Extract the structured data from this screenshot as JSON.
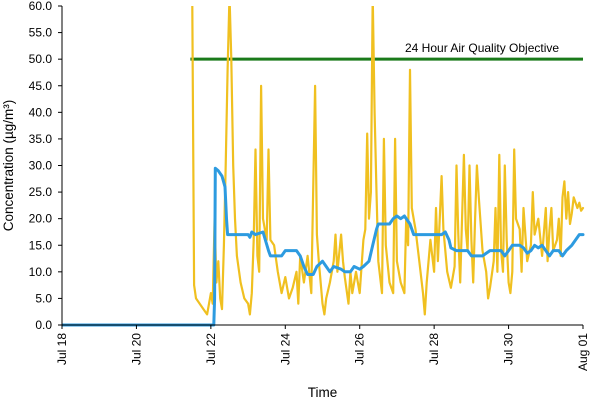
{
  "chart_data": {
    "type": "line",
    "xlabel": "Time",
    "ylabel": "Concentration (µg/m³)",
    "ylim": [
      0,
      60
    ],
    "xlim": [
      "Jul 18",
      "Aug 01"
    ],
    "y_ticks": [
      "0.0",
      "5.0",
      "10.0",
      "15.0",
      "20.0",
      "25.0",
      "30.0",
      "35.0",
      "40.0",
      "45.0",
      "50.0",
      "55.0",
      "60.0"
    ],
    "x_ticks": [
      "Jul 18",
      "Jul 20",
      "Jul 22",
      "Jul 24",
      "Jul 26",
      "Jul 28",
      "Jul 30",
      "Aug 01"
    ],
    "grid": false,
    "colors": {
      "hourly": "#f0c020",
      "rolling": "#2d9be0",
      "objective": "#1a7a1a"
    },
    "objective": {
      "value": 50,
      "x_start_day": 21.45,
      "x_end_day": 32.0,
      "label": "24 Hour Air Quality Objective"
    },
    "series": [
      {
        "key": "hourly",
        "points": [
          [
            21.5,
            60
          ],
          [
            21.55,
            7.5
          ],
          [
            21.6,
            5
          ],
          [
            21.7,
            4
          ],
          [
            21.8,
            3
          ],
          [
            21.9,
            2
          ],
          [
            22.0,
            6
          ],
          [
            22.05,
            4
          ],
          [
            22.1,
            20
          ],
          [
            22.15,
            8
          ],
          [
            22.2,
            12
          ],
          [
            22.25,
            5
          ],
          [
            22.3,
            3
          ],
          [
            22.35,
            15
          ],
          [
            22.4,
            30
          ],
          [
            22.45,
            48
          ],
          [
            22.5,
            62
          ],
          [
            22.55,
            50
          ],
          [
            22.6,
            30
          ],
          [
            22.65,
            20
          ],
          [
            22.7,
            13
          ],
          [
            22.8,
            8
          ],
          [
            22.9,
            5
          ],
          [
            23.0,
            4
          ],
          [
            23.05,
            2
          ],
          [
            23.1,
            6
          ],
          [
            23.15,
            16
          ],
          [
            23.2,
            33
          ],
          [
            23.25,
            13
          ],
          [
            23.3,
            10
          ],
          [
            23.35,
            45
          ],
          [
            23.4,
            20
          ],
          [
            23.5,
            16
          ],
          [
            23.55,
            33
          ],
          [
            23.6,
            16
          ],
          [
            23.7,
            15
          ],
          [
            23.8,
            10
          ],
          [
            23.9,
            6
          ],
          [
            24.0,
            9
          ],
          [
            24.1,
            5
          ],
          [
            24.2,
            7
          ],
          [
            24.3,
            10
          ],
          [
            24.35,
            4
          ],
          [
            24.4,
            13
          ],
          [
            24.5,
            8
          ],
          [
            24.6,
            13
          ],
          [
            24.7,
            6
          ],
          [
            24.8,
            45
          ],
          [
            24.85,
            17
          ],
          [
            24.9,
            12
          ],
          [
            25.0,
            4
          ],
          [
            25.05,
            2
          ],
          [
            25.1,
            5
          ],
          [
            25.2,
            8
          ],
          [
            25.3,
            12
          ],
          [
            25.35,
            17
          ],
          [
            25.4,
            10
          ],
          [
            25.5,
            17
          ],
          [
            25.55,
            12
          ],
          [
            25.6,
            9
          ],
          [
            25.7,
            4
          ],
          [
            25.75,
            10
          ],
          [
            25.8,
            6
          ],
          [
            25.9,
            10
          ],
          [
            26.0,
            6
          ],
          [
            26.1,
            16
          ],
          [
            26.15,
            18
          ],
          [
            26.2,
            36
          ],
          [
            26.25,
            20
          ],
          [
            26.3,
            25
          ],
          [
            26.35,
            62
          ],
          [
            26.4,
            40
          ],
          [
            26.45,
            25
          ],
          [
            26.5,
            12
          ],
          [
            26.6,
            6
          ],
          [
            26.65,
            35
          ],
          [
            26.7,
            15
          ],
          [
            26.8,
            8
          ],
          [
            26.9,
            6
          ],
          [
            26.95,
            35
          ],
          [
            27.0,
            12
          ],
          [
            27.1,
            8
          ],
          [
            27.2,
            6
          ],
          [
            27.25,
            20
          ],
          [
            27.3,
            15
          ],
          [
            27.35,
            48
          ],
          [
            27.4,
            22
          ],
          [
            27.5,
            18
          ],
          [
            27.6,
            12
          ],
          [
            27.7,
            6
          ],
          [
            27.75,
            2
          ],
          [
            27.8,
            8
          ],
          [
            27.9,
            16
          ],
          [
            28.0,
            10
          ],
          [
            28.05,
            22
          ],
          [
            28.1,
            12
          ],
          [
            28.2,
            28
          ],
          [
            28.25,
            18
          ],
          [
            28.35,
            10
          ],
          [
            28.45,
            7
          ],
          [
            28.55,
            11
          ],
          [
            28.6,
            30
          ],
          [
            28.65,
            17
          ],
          [
            28.7,
            8
          ],
          [
            28.8,
            32
          ],
          [
            28.85,
            18
          ],
          [
            28.9,
            14
          ],
          [
            28.95,
            30
          ],
          [
            29.0,
            16
          ],
          [
            29.05,
            8
          ],
          [
            29.1,
            20
          ],
          [
            29.15,
            30
          ],
          [
            29.2,
            24
          ],
          [
            29.3,
            14
          ],
          [
            29.4,
            10
          ],
          [
            29.45,
            5
          ],
          [
            29.5,
            7
          ],
          [
            29.6,
            12
          ],
          [
            29.65,
            22
          ],
          [
            29.7,
            10
          ],
          [
            29.75,
            32
          ],
          [
            29.8,
            14
          ],
          [
            29.85,
            10
          ],
          [
            29.9,
            30
          ],
          [
            29.95,
            16
          ],
          [
            30.0,
            8
          ],
          [
            30.05,
            6
          ],
          [
            30.1,
            10
          ],
          [
            30.15,
            33
          ],
          [
            30.2,
            20
          ],
          [
            30.3,
            18
          ],
          [
            30.35,
            10
          ],
          [
            30.4,
            22
          ],
          [
            30.5,
            12
          ],
          [
            30.6,
            15
          ],
          [
            30.65,
            25
          ],
          [
            30.7,
            17
          ],
          [
            30.8,
            20
          ],
          [
            30.9,
            13
          ],
          [
            31.0,
            22
          ],
          [
            31.05,
            12
          ],
          [
            31.1,
            18
          ],
          [
            31.15,
            22
          ],
          [
            31.2,
            14
          ],
          [
            31.3,
            16
          ],
          [
            31.35,
            20
          ],
          [
            31.4,
            13
          ],
          [
            31.45,
            24
          ],
          [
            31.5,
            27
          ],
          [
            31.55,
            20
          ],
          [
            31.6,
            25
          ],
          [
            31.65,
            19
          ],
          [
            31.7,
            21
          ],
          [
            31.75,
            24
          ],
          [
            31.8,
            23
          ],
          [
            31.85,
            22
          ],
          [
            31.9,
            23
          ],
          [
            31.95,
            21.5
          ],
          [
            32.0,
            22
          ]
        ]
      },
      {
        "key": "rolling",
        "points": [
          [
            18.0,
            0
          ],
          [
            22.08,
            0
          ],
          [
            22.1,
            5
          ],
          [
            22.12,
            29.5
          ],
          [
            22.2,
            29
          ],
          [
            22.3,
            28
          ],
          [
            22.38,
            26
          ],
          [
            22.42,
            20
          ],
          [
            22.45,
            17
          ],
          [
            22.55,
            17
          ],
          [
            22.6,
            17
          ],
          [
            23.0,
            17
          ],
          [
            23.05,
            16.5
          ],
          [
            23.1,
            17.5
          ],
          [
            23.2,
            17
          ],
          [
            23.4,
            17.5
          ],
          [
            23.55,
            14
          ],
          [
            23.6,
            13
          ],
          [
            23.9,
            13
          ],
          [
            24.0,
            14
          ],
          [
            24.3,
            14
          ],
          [
            24.4,
            13
          ],
          [
            24.5,
            11
          ],
          [
            24.6,
            9.5
          ],
          [
            24.75,
            9.5
          ],
          [
            24.85,
            11
          ],
          [
            25.0,
            12
          ],
          [
            25.1,
            11
          ],
          [
            25.2,
            10
          ],
          [
            25.3,
            11
          ],
          [
            25.5,
            10.5
          ],
          [
            25.6,
            10
          ],
          [
            25.75,
            10
          ],
          [
            25.85,
            11
          ],
          [
            26.0,
            10.5
          ],
          [
            26.1,
            11
          ],
          [
            26.25,
            12
          ],
          [
            26.35,
            15
          ],
          [
            26.45,
            18
          ],
          [
            26.5,
            19
          ],
          [
            26.8,
            19
          ],
          [
            26.9,
            20
          ],
          [
            27.0,
            20.5
          ],
          [
            27.1,
            20
          ],
          [
            27.2,
            20.5
          ],
          [
            27.35,
            19
          ],
          [
            27.45,
            17
          ],
          [
            28.2,
            17
          ],
          [
            28.3,
            17.5
          ],
          [
            28.4,
            16
          ],
          [
            28.45,
            14.5
          ],
          [
            28.6,
            14
          ],
          [
            28.9,
            14
          ],
          [
            29.0,
            13
          ],
          [
            29.3,
            13
          ],
          [
            29.5,
            14
          ],
          [
            29.8,
            14
          ],
          [
            29.9,
            13
          ],
          [
            30.0,
            14
          ],
          [
            30.1,
            15
          ],
          [
            30.3,
            15
          ],
          [
            30.4,
            14.5
          ],
          [
            30.5,
            13.5
          ],
          [
            30.6,
            14
          ],
          [
            30.7,
            15
          ],
          [
            30.8,
            14.5
          ],
          [
            30.9,
            15
          ],
          [
            31.0,
            14
          ],
          [
            31.1,
            13
          ],
          [
            31.2,
            14
          ],
          [
            31.35,
            14
          ],
          [
            31.45,
            13
          ],
          [
            31.55,
            14
          ],
          [
            31.7,
            15
          ],
          [
            31.8,
            16
          ],
          [
            31.9,
            17
          ],
          [
            32.0,
            17
          ]
        ]
      }
    ]
  }
}
